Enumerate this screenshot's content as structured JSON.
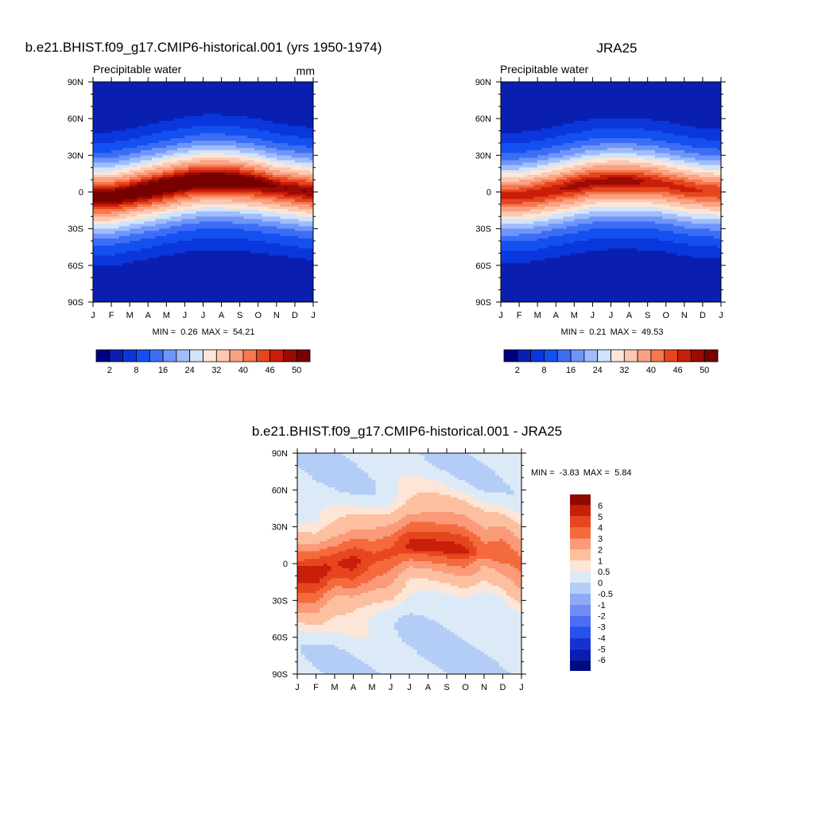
{
  "chart_data": [
    {
      "type": "heatmap",
      "title": "b.e21.BHIST.f09_g17.CMIP6-historical.001 (yrs 1950-1974)",
      "subtitle": "Precipitable water",
      "units": "mm",
      "x_tick_labels": [
        "J",
        "F",
        "M",
        "A",
        "M",
        "J",
        "J",
        "A",
        "S",
        "O",
        "N",
        "D",
        "J"
      ],
      "y_tick_labels": [
        "90N",
        "60N",
        "30N",
        "0",
        "30S",
        "60S",
        "90S"
      ],
      "y_values": [
        90,
        60,
        30,
        0,
        -30,
        -60,
        -90
      ],
      "stats": {
        "min_label": "MIN =",
        "min": "0.26",
        "max_label": "MAX =",
        "max": "54.21"
      },
      "colorbar": {
        "orientation": "horizontal",
        "levels": [
          "2",
          "8",
          "16",
          "24",
          "32",
          "40",
          "46",
          "50"
        ],
        "colors": [
          "#000080",
          "#0a1fb0",
          "#0a37dc",
          "#1450f0",
          "#3c6ef5",
          "#6e96fa",
          "#a0bcfa",
          "#d2e4fa",
          "#fde6d8",
          "#fcc8b0",
          "#fba282",
          "#f57850",
          "#e6461e",
          "#c81e0a",
          "#9a0b04",
          "#760000"
        ]
      },
      "ylim": [
        -90,
        90
      ],
      "peak_lat_by_month": [
        -4,
        -4,
        -1,
        2,
        5,
        8,
        10,
        10,
        9,
        7,
        4,
        2,
        0
      ],
      "peak_value_by_month": [
        53,
        53,
        53,
        54,
        54,
        54,
        54,
        54,
        53,
        52,
        50,
        50,
        50
      ],
      "grid": false
    },
    {
      "type": "heatmap",
      "title": "JRA25",
      "subtitle": "Precipitable water",
      "x_tick_labels": [
        "J",
        "F",
        "M",
        "A",
        "M",
        "J",
        "J",
        "A",
        "S",
        "O",
        "N",
        "D",
        "J"
      ],
      "y_tick_labels": [
        "90N",
        "60N",
        "30N",
        "0",
        "30S",
        "60S",
        "90S"
      ],
      "y_values": [
        90,
        60,
        30,
        0,
        -30,
        -60,
        -90
      ],
      "stats": {
        "min_label": "MIN =",
        "min": "0.21",
        "max_label": "MAX =",
        "max": "49.53"
      },
      "colorbar": {
        "orientation": "horizontal",
        "levels": [
          "2",
          "8",
          "16",
          "24",
          "32",
          "40",
          "46",
          "50"
        ],
        "colors": [
          "#000080",
          "#0a1fb0",
          "#0a37dc",
          "#1450f0",
          "#3c6ef5",
          "#6e96fa",
          "#a0bcfa",
          "#d2e4fa",
          "#fde6d8",
          "#fcc8b0",
          "#fba282",
          "#f57850",
          "#e6461e",
          "#c81e0a",
          "#9a0b04",
          "#760000"
        ]
      },
      "ylim": [
        -90,
        90
      ],
      "peak_lat_by_month": [
        -3,
        -3,
        -1,
        2,
        5,
        8,
        9,
        9,
        8,
        6,
        3,
        1,
        0
      ],
      "peak_value_by_month": [
        47,
        47,
        48,
        48,
        49,
        49,
        49,
        49,
        48,
        47,
        47,
        46,
        46
      ],
      "grid": false
    },
    {
      "type": "heatmap",
      "title": "b.e21.BHIST.f09_g17.CMIP6-historical.001 - JRA25",
      "x_tick_labels": [
        "J",
        "F",
        "M",
        "A",
        "M",
        "J",
        "J",
        "A",
        "S",
        "O",
        "N",
        "D",
        "J"
      ],
      "y_tick_labels": [
        "90N",
        "60N",
        "30N",
        "0",
        "30S",
        "60S",
        "90S"
      ],
      "y_values": [
        90,
        60,
        30,
        0,
        -30,
        -60,
        -90
      ],
      "stats": {
        "min_label": "MIN =",
        "min": "-3.83",
        "max_label": "MAX =",
        "max": "5.84"
      },
      "colorbar": {
        "orientation": "vertical",
        "levels": [
          "6",
          "5",
          "4",
          "3",
          "2",
          "1",
          "0.5",
          "0",
          "-0.5",
          "-1",
          "-2",
          "-3",
          "-4",
          "-5",
          "-6"
        ],
        "colors": [
          "#8c0a00",
          "#c81e0a",
          "#e6461e",
          "#f56a3c",
          "#fa9a78",
          "#fcc0a0",
          "#fde6d8",
          "#dceaf8",
          "#b4cdf7",
          "#8caaf8",
          "#6e8ef5",
          "#4c6ef2",
          "#2850eb",
          "#1432d2",
          "#0a1eb4",
          "#000a82"
        ]
      },
      "ylim": [
        -90,
        90
      ],
      "grid": false
    }
  ]
}
